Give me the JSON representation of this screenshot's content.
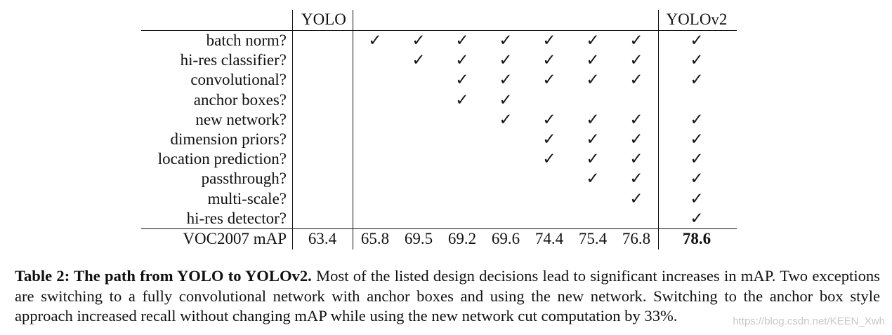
{
  "table": {
    "headers": {
      "yolo": "YOLO",
      "yolov2": "YOLOv2"
    },
    "rows": [
      {
        "label": "batch norm?",
        "cells": [
          "",
          "✓",
          "✓",
          "✓",
          "✓",
          "✓",
          "✓",
          "✓",
          "✓"
        ]
      },
      {
        "label": "hi-res classifier?",
        "cells": [
          "",
          "",
          "✓",
          "✓",
          "✓",
          "✓",
          "✓",
          "✓",
          "✓"
        ]
      },
      {
        "label": "convolutional?",
        "cells": [
          "",
          "",
          "",
          "✓",
          "✓",
          "✓",
          "✓",
          "✓",
          "✓"
        ]
      },
      {
        "label": "anchor boxes?",
        "cells": [
          "",
          "",
          "",
          "✓",
          "✓",
          "",
          "",
          "",
          ""
        ]
      },
      {
        "label": "new network?",
        "cells": [
          "",
          "",
          "",
          "",
          "✓",
          "✓",
          "✓",
          "✓",
          "✓"
        ]
      },
      {
        "label": "dimension priors?",
        "cells": [
          "",
          "",
          "",
          "",
          "",
          "✓",
          "✓",
          "✓",
          "✓"
        ]
      },
      {
        "label": "location prediction?",
        "cells": [
          "",
          "",
          "",
          "",
          "",
          "✓",
          "✓",
          "✓",
          "✓"
        ]
      },
      {
        "label": "passthrough?",
        "cells": [
          "",
          "",
          "",
          "",
          "",
          "",
          "✓",
          "✓",
          "✓"
        ]
      },
      {
        "label": "multi-scale?",
        "cells": [
          "",
          "",
          "",
          "",
          "",
          "",
          "",
          "✓",
          "✓"
        ]
      },
      {
        "label": "hi-res detector?",
        "cells": [
          "",
          "",
          "",
          "",
          "",
          "",
          "",
          "",
          "✓"
        ]
      }
    ],
    "metric": {
      "label": "VOC2007 mAP",
      "values": [
        "63.4",
        "65.8",
        "69.5",
        "69.2",
        "69.6",
        "74.4",
        "75.4",
        "76.8",
        "78.6"
      ]
    }
  },
  "caption": {
    "lead": "Table 2: The path from YOLO to YOLOv2.",
    "body": "Most of the listed design decisions lead to significant increases in mAP. Two exceptions are switching to a fully convolutional network with anchor boxes and using the new network. Switching to the anchor box style approach increased recall without changing mAP while using the new network cut computation by 33%."
  },
  "watermark": "https://blog.csdn.net/KEEN_Xwh"
}
